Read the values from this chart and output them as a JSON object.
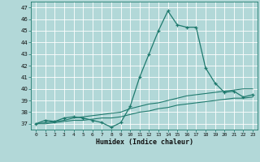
{
  "title": "",
  "xlabel": "Humidex (Indice chaleur)",
  "background_color": "#b2d8d8",
  "grid_color": "#ffffff",
  "line_color": "#1f7a6e",
  "x_values": [
    0,
    1,
    2,
    3,
    4,
    5,
    6,
    7,
    8,
    9,
    10,
    11,
    12,
    13,
    14,
    15,
    16,
    17,
    18,
    19,
    20,
    21,
    22,
    23
  ],
  "line1_y": [
    37.0,
    37.3,
    37.2,
    37.5,
    37.6,
    37.5,
    37.3,
    37.1,
    36.7,
    37.1,
    38.5,
    41.0,
    43.0,
    45.0,
    46.7,
    45.5,
    45.3,
    45.3,
    41.8,
    40.5,
    39.7,
    39.8,
    39.3,
    39.5
  ],
  "line2_y": [
    37.0,
    37.1,
    37.2,
    37.3,
    37.5,
    37.6,
    37.7,
    37.8,
    37.9,
    38.0,
    38.3,
    38.5,
    38.7,
    38.8,
    39.0,
    39.2,
    39.4,
    39.5,
    39.6,
    39.7,
    39.8,
    39.9,
    40.0,
    40.0
  ],
  "line3_y": [
    37.0,
    37.0,
    37.1,
    37.2,
    37.3,
    37.3,
    37.4,
    37.5,
    37.5,
    37.6,
    37.8,
    38.0,
    38.1,
    38.3,
    38.4,
    38.6,
    38.7,
    38.8,
    38.9,
    39.0,
    39.1,
    39.2,
    39.2,
    39.3
  ],
  "ylim": [
    36.5,
    47.5
  ],
  "xlim": [
    -0.5,
    23.5
  ],
  "yticks": [
    37,
    38,
    39,
    40,
    41,
    42,
    43,
    44,
    45,
    46,
    47
  ],
  "xticks": [
    0,
    1,
    2,
    3,
    4,
    5,
    6,
    7,
    8,
    9,
    10,
    11,
    12,
    13,
    14,
    15,
    16,
    17,
    18,
    19,
    20,
    21,
    22,
    23
  ]
}
